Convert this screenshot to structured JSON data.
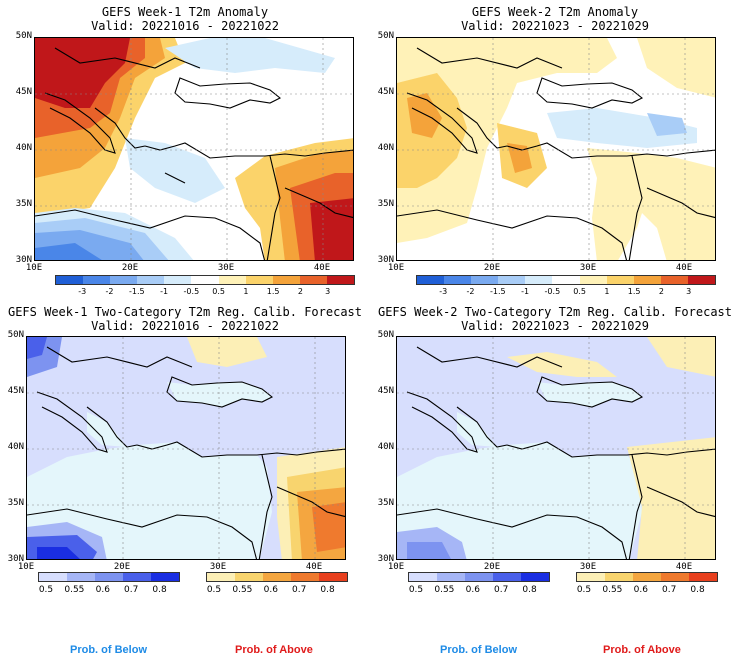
{
  "panels": [
    {
      "title": "GEFS Week-1 T2m Anomaly",
      "valid": "Valid: 20221016 - 20221022"
    },
    {
      "title": "GEFS Week-2 T2m Anomaly",
      "valid": "Valid: 20221023 - 20221029"
    },
    {
      "title": "GEFS Week-1 Two-Category T2m Reg. Calib. Forecast",
      "valid": "Valid: 20221016 - 20221022"
    },
    {
      "title": "GEFS Week-2 Two-Category T2m Reg. Calib. Forecast",
      "valid": "Valid: 20221023 - 20221029"
    }
  ],
  "lat_labels": [
    "50N",
    "45N",
    "40N",
    "35N",
    "30N"
  ],
  "lon_labels": [
    "10E",
    "20E",
    "30E",
    "40E"
  ],
  "anomaly_scale": {
    "labels": [
      "-3",
      "-2",
      "-1.5",
      "-1",
      "-0.5",
      "0.5",
      "1",
      "1.5",
      "2",
      "3"
    ],
    "colors": [
      "#1f5fd6",
      "#4a86e8",
      "#7aaaf0",
      "#a9cdf7",
      "#d6ecfb",
      "#ffffff",
      "#fff2b8",
      "#fbd36a",
      "#f4a33a",
      "#e8622a",
      "#c0171a"
    ]
  },
  "below_scale": {
    "labels": [
      "0.5",
      "0.55",
      "0.6",
      "0.7",
      "0.8"
    ],
    "colors": [
      "#d7defd",
      "#a6b6f6",
      "#7d93f0",
      "#4a60ea",
      "#1a2ee2"
    ]
  },
  "above_scale": {
    "labels": [
      "0.5",
      "0.55",
      "0.6",
      "0.7",
      "0.8"
    ],
    "colors": [
      "#fcefb6",
      "#f8d46e",
      "#f4a640",
      "#ef7a2e",
      "#e8401e"
    ]
  },
  "footer": {
    "below": "Prob. of Below",
    "above": "Prob. of Above"
  },
  "colors": {
    "below_text": "#1e8be6",
    "above_text": "#e01b1b",
    "sea": "#e4f6fb",
    "land": "#ffffff"
  }
}
